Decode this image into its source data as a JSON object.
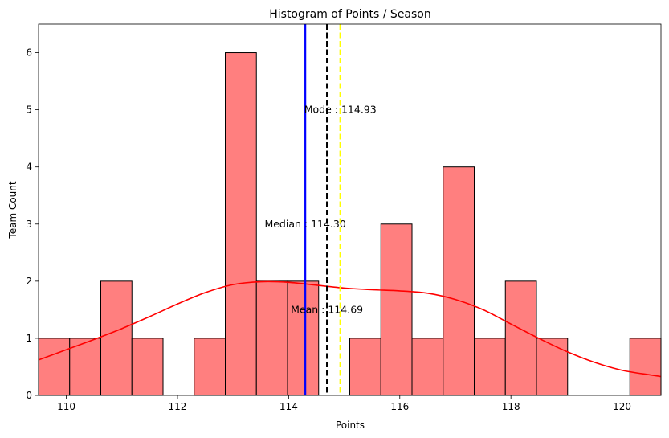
{
  "chart_data": {
    "type": "bar",
    "title": "Histogram of Points / Season",
    "xlabel": "Points",
    "ylabel": "Team Count",
    "xlim": [
      109.5,
      120.7
    ],
    "ylim": [
      0,
      6.5
    ],
    "x_ticks": [
      110,
      112,
      114,
      116,
      118,
      120
    ],
    "y_ticks": [
      0,
      1,
      2,
      3,
      4,
      5,
      6
    ],
    "grid": false,
    "bin_start": 109.5,
    "bin_width": 0.56,
    "counts": [
      1,
      1,
      2,
      1,
      0,
      1,
      6,
      2,
      2,
      0,
      1,
      3,
      1,
      4,
      1,
      2,
      1,
      0,
      0,
      1
    ],
    "bar_color": "#ff7f7f",
    "bar_edge_color": "#000000",
    "kde": {
      "color": "#ff0000",
      "x": [
        109.5,
        110.0,
        110.5,
        111.0,
        111.5,
        112.0,
        112.5,
        113.0,
        113.5,
        114.0,
        114.5,
        115.0,
        115.5,
        116.0,
        116.5,
        117.0,
        117.5,
        118.0,
        118.5,
        119.0,
        119.5,
        120.0,
        120.5,
        120.7
      ],
      "y": [
        0.62,
        0.8,
        0.98,
        1.17,
        1.38,
        1.6,
        1.8,
        1.94,
        1.99,
        1.98,
        1.93,
        1.88,
        1.85,
        1.83,
        1.79,
        1.68,
        1.5,
        1.25,
        1.0,
        0.77,
        0.58,
        0.44,
        0.36,
        0.33
      ]
    },
    "lines": [
      {
        "name": "Median",
        "value": 114.3,
        "color": "#0000ff",
        "style": "solid",
        "label": "Median : 114.30",
        "label_y": 3.0
      },
      {
        "name": "Mean",
        "value": 114.69,
        "color": "#000000",
        "style": "dashed",
        "label": "Mean : 114.69",
        "label_y": 1.5
      },
      {
        "name": "Mode",
        "value": 114.93,
        "color": "#ffff00",
        "style": "dashed",
        "label": "Mode : 114.93",
        "label_y": 5.0
      }
    ]
  }
}
